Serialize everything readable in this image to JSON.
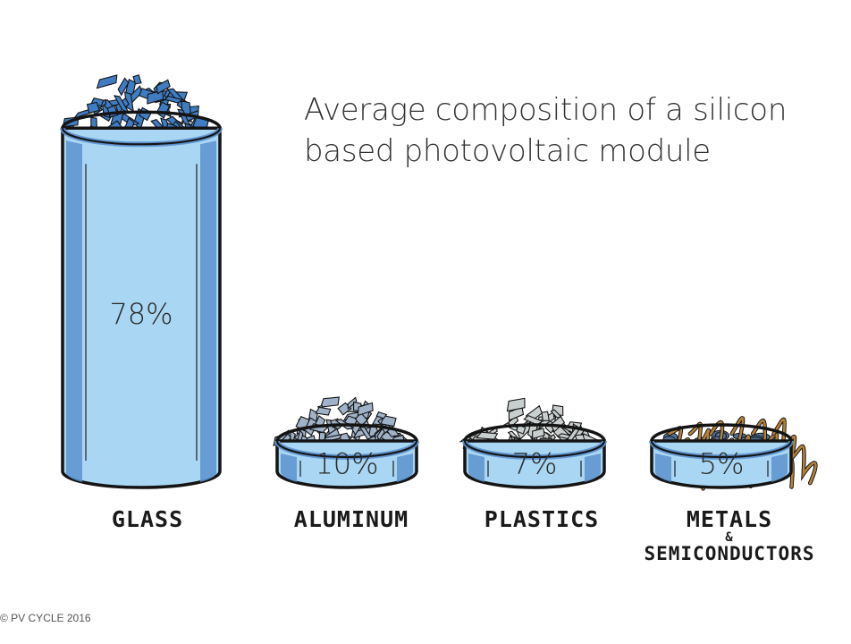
{
  "title": "Average composition of a silicon based photovoltaic module",
  "credit": "© PV CYCLE 2016",
  "colors": {
    "cup_fill": "#a9d6f2",
    "cup_shade": "#5d93cf",
    "outline": "#141414",
    "glass_chips": "#3f7cc2",
    "aluminum_chips": "#9fb2c8",
    "plastic_chips": "#c9cfcf",
    "metal_wire": "#b2813a",
    "semi_chips": "#4f6f9a"
  },
  "chart_data": {
    "type": "bar",
    "title": "Average composition of a silicon based photovoltaic module",
    "categories": [
      "GLASS",
      "ALUMINUM",
      "PLASTICS",
      "METALS & SEMICONDUCTORS"
    ],
    "values": [
      78,
      10,
      7,
      5
    ],
    "value_labels": [
      "78%",
      "10%",
      "7%",
      "5%"
    ],
    "category_lines": [
      [
        "GLASS"
      ],
      [
        "ALUMINUM"
      ],
      [
        "PLASTICS"
      ],
      [
        "METALS",
        "&",
        "SEMICONDUCTORS"
      ]
    ],
    "unit": "%",
    "ylim": [
      0,
      100
    ],
    "grid": false,
    "legend": "none",
    "bar_style": "illustrated-cups",
    "icons": [
      "glass-chips-icon",
      "aluminum-chips-icon",
      "plastic-chips-icon",
      "metal-wire-icon"
    ]
  }
}
